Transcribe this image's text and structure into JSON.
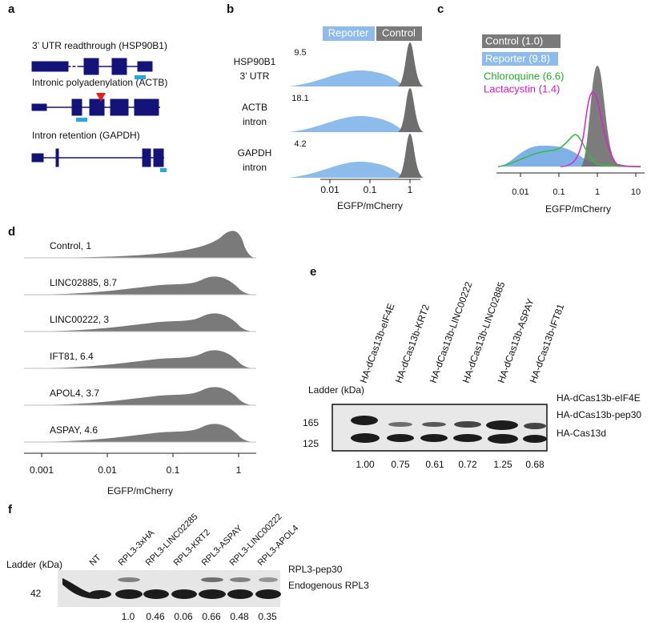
{
  "a": {
    "label": "a",
    "titles": [
      "3’ UTR readthrough (HSP90B1)",
      "Intronic polyadenylation (ACTB)",
      "Intron retention (GAPDH)"
    ]
  },
  "b": {
    "label": "b",
    "legend": [
      "Reporter",
      "Control"
    ],
    "rows": [
      [
        "HSP90B1",
        "3’ UTR"
      ],
      [
        "ACTB",
        "intron"
      ],
      [
        "GAPDH",
        "intron"
      ]
    ],
    "values": [
      "9.5",
      "18.1",
      "4.2"
    ],
    "ticks": [
      "0.01",
      "0.1",
      "1"
    ],
    "xlabel": "EGFP/mCherry"
  },
  "c": {
    "label": "c",
    "legend": [
      "Control (1.0)",
      "Reporter (9.8)",
      "Chloroquine (6.6)",
      "Lactacystin (1.4)"
    ],
    "ticks": [
      "0.01",
      "0.1",
      "1",
      "10"
    ],
    "xlabel": "EGFP/mCherry"
  },
  "d": {
    "label": "d",
    "rows": [
      "Control, 1",
      "LINC02885, 8.7",
      "LINC00222, 3",
      "IFT81, 6.4",
      "APOL4, 3.7",
      "ASPAY, 4.6"
    ],
    "ticks": [
      "0.001",
      "0.01",
      "0.1",
      "1"
    ],
    "xlabel": "EGFP/mCherry"
  },
  "e": {
    "label": "e",
    "lanes": [
      "HA-dCas13b-eIF4E",
      "HA-dCas13b-KRT2",
      "HA-dCas13b-LINC00222",
      "HA-dCas13b-LINC02885",
      "HA-dCas13b-ASPAY",
      "HA-dCas13b-IFT81"
    ],
    "ladder": "Ladder (kDa)",
    "markers": [
      "165",
      "125"
    ],
    "bands": [
      "HA-dCas13b-eIF4E",
      "HA-dCas13b-pep30",
      "HA-Cas13d"
    ],
    "quant": [
      "1.00",
      "0.75",
      "0.61",
      "0.72",
      "1.25",
      "0.68"
    ]
  },
  "f": {
    "label": "f",
    "lanes": [
      "NT",
      "RPL3-3xHA",
      "RPL3-LINC02285",
      "RPL3-KRT2",
      "RPL3-ASPAY",
      "RPL3-LINC00222",
      "RPL3-APOL4"
    ],
    "ladder": "Ladder (kDa)",
    "markers": [
      "42"
    ],
    "bands": [
      "RPL3-pep30",
      "Endogenous RPL3"
    ],
    "quant": [
      "1.0",
      "0.46",
      "0.06",
      "0.66",
      "0.48",
      "0.35"
    ]
  }
}
